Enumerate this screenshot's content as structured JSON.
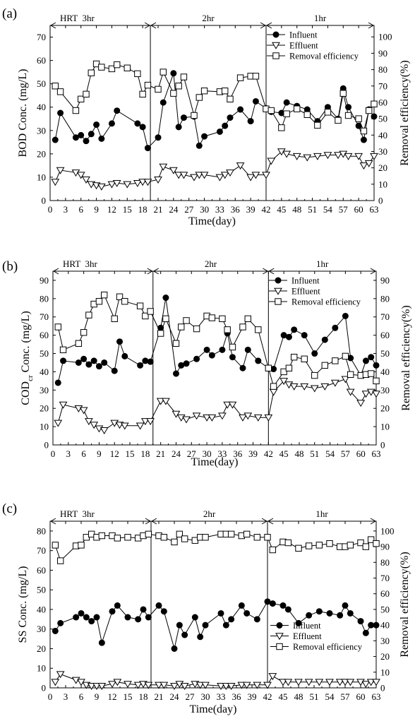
{
  "chart_data": [
    {
      "type": "line",
      "panel_label": "(a)",
      "ylabel": "BOD Conc. (mg/L)",
      "y2label": "Removal efficiency(%)",
      "xlabel": "Time(day)",
      "xlim": [
        0,
        63
      ],
      "ylim": [
        0,
        75
      ],
      "y2lim": [
        0,
        107
      ],
      "xticks": [
        "0",
        "3",
        "6",
        "9",
        "12",
        "15",
        "18",
        "21",
        "24",
        "27",
        "30",
        "33",
        "36",
        "39",
        "42",
        "45",
        "48",
        "51",
        "54",
        "57",
        "60",
        "63"
      ],
      "yticks": [
        "0",
        "10",
        "20",
        "30",
        "40",
        "50",
        "60",
        "70"
      ],
      "y2ticks": [
        "0",
        "10",
        "20",
        "30",
        "40",
        "50",
        "60",
        "70",
        "80",
        "90",
        "100"
      ],
      "phase_labels": [
        "HRT  3hr",
        "2hr",
        "1hr"
      ],
      "legend": [
        "Influent",
        "Effluent",
        "Removal efficiency"
      ],
      "legend_position": "top-right",
      "series": [
        {
          "name": "Influent",
          "axis": "left",
          "marker": "filled-circle",
          "x": [
            1,
            2,
            5,
            6,
            7,
            8,
            9,
            10,
            12,
            13,
            17,
            18,
            19,
            21,
            22,
            24,
            25,
            26,
            28,
            29,
            30,
            33,
            34,
            35,
            37,
            39,
            40,
            42,
            43,
            45,
            46,
            48,
            50,
            52,
            54,
            56,
            57,
            58,
            60,
            61,
            62,
            63
          ],
          "y": [
            26,
            37.5,
            27,
            28,
            25.5,
            28.5,
            32.5,
            26.5,
            33,
            38.5,
            33,
            31.5,
            22.5,
            27,
            42,
            54.5,
            31.5,
            35.5,
            36,
            23.5,
            27.5,
            29.5,
            32,
            35.5,
            39,
            34,
            42.5,
            39.5,
            38,
            37.5,
            42,
            40.5,
            39,
            34,
            40,
            35,
            48,
            40,
            32,
            26,
            39,
            36
          ]
        },
        {
          "name": "Effluent",
          "axis": "left",
          "marker": "open-down-triangle",
          "x": [
            1,
            2,
            5,
            6,
            7,
            8,
            9,
            10,
            12,
            13,
            15,
            17,
            18,
            19,
            21,
            22,
            24,
            25,
            26,
            28,
            29,
            30,
            33,
            34,
            35,
            37,
            39,
            40,
            42,
            43,
            45,
            46,
            48,
            50,
            52,
            54,
            56,
            57,
            58,
            60,
            61,
            62,
            63
          ],
          "y": [
            8,
            13,
            12,
            11,
            9,
            7,
            6.5,
            6,
            7,
            7.5,
            7,
            7.5,
            8,
            8,
            9,
            14.5,
            13,
            11,
            11,
            10,
            11,
            11,
            10,
            11,
            12,
            15,
            10,
            11,
            11,
            17,
            21,
            20,
            19,
            18.5,
            19,
            19.5,
            19.5,
            20,
            19,
            19,
            15,
            16,
            19
          ]
        },
        {
          "name": "Removal efficiency",
          "axis": "right",
          "marker": "open-square",
          "x": [
            1,
            2,
            5,
            6,
            7,
            8,
            9,
            10,
            12,
            13,
            15,
            17,
            18,
            19,
            21,
            22,
            24,
            25,
            26,
            28,
            29,
            30,
            33,
            34,
            35,
            37,
            39,
            40,
            42,
            43,
            45,
            46,
            48,
            50,
            52,
            54,
            56,
            57,
            58,
            60,
            61,
            62,
            63
          ],
          "y": [
            70,
            66.5,
            55,
            62,
            65,
            78,
            83.5,
            81.5,
            80.5,
            83,
            81,
            77.5,
            65,
            70.5,
            68,
            78.5,
            65.5,
            70,
            75.5,
            52,
            63,
            67,
            66.5,
            67,
            62,
            75,
            76,
            76,
            56,
            55,
            44.5,
            53,
            56,
            52.5,
            46,
            54,
            49,
            65.5,
            52,
            50,
            42.5,
            55,
            59
          ]
        }
      ]
    },
    {
      "type": "line",
      "panel_label": "(b)",
      "ylabel": "COD",
      "ylabel_sub": "cr",
      "ylabel_rest": " Conc. (mg/L)",
      "y2label": "Removal efficiency(%)",
      "xlabel": "Time(day)",
      "xlim": [
        0,
        63
      ],
      "ylim": [
        0,
        95
      ],
      "y2lim": [
        0,
        95
      ],
      "xticks": [
        "0",
        "3",
        "6",
        "9",
        "12",
        "15",
        "18",
        "21",
        "24",
        "27",
        "30",
        "33",
        "36",
        "39",
        "42",
        "45",
        "48",
        "51",
        "54",
        "57",
        "60",
        "63"
      ],
      "yticks": [
        "0",
        "10",
        "20",
        "30",
        "40",
        "50",
        "60",
        "70",
        "80",
        "90"
      ],
      "y2ticks": [
        "0",
        "10",
        "20",
        "30",
        "40",
        "50",
        "60",
        "70",
        "80",
        "90"
      ],
      "phase_labels": [
        "HRT  3hr",
        "2hr",
        "1hr"
      ],
      "legend": [
        "Influent",
        "Effluent",
        "Removal efficiency"
      ],
      "legend_position": "top-right",
      "series": [
        {
          "name": "Influent",
          "axis": "left",
          "marker": "filled-circle",
          "x": [
            1,
            2,
            5,
            6,
            7,
            8,
            9,
            10,
            12,
            13,
            14,
            17,
            18,
            19,
            21,
            22,
            24,
            25,
            26,
            28,
            30,
            31,
            33,
            34,
            35,
            37,
            38,
            40,
            42,
            43,
            45,
            46,
            47,
            49,
            51,
            53,
            55,
            57,
            58,
            60,
            61,
            62,
            63
          ],
          "y": [
            34,
            46,
            45,
            47,
            44,
            46,
            43,
            45,
            40.5,
            56.5,
            48.5,
            43.5,
            46,
            45.5,
            64,
            80.5,
            39,
            43.5,
            44.5,
            47,
            52,
            49,
            52,
            61,
            48,
            42,
            52,
            46,
            42,
            41.5,
            60,
            59,
            63,
            60,
            50,
            57.5,
            64,
            70.5,
            47.5,
            38,
            46,
            48,
            43.5
          ]
        },
        {
          "name": "Effluent",
          "axis": "left",
          "marker": "open-down-triangle",
          "x": [
            1,
            2,
            5,
            6,
            7,
            8,
            9,
            10,
            12,
            13,
            14,
            17,
            18,
            19,
            21,
            22,
            24,
            25,
            26,
            28,
            30,
            31,
            33,
            34,
            35,
            37,
            38,
            40,
            42,
            43,
            45,
            46,
            47,
            49,
            51,
            53,
            55,
            57,
            58,
            60,
            61,
            62,
            63
          ],
          "y": [
            12,
            22,
            20,
            19,
            13,
            11,
            9,
            8,
            12,
            11,
            10.5,
            10.5,
            13,
            13,
            24,
            24,
            17,
            15,
            14,
            16,
            15,
            15,
            16,
            22,
            22,
            15,
            16,
            15,
            15,
            29,
            35,
            33,
            32,
            32,
            31,
            32,
            34,
            36,
            29,
            23,
            28,
            29,
            28
          ]
        },
        {
          "name": "Removal efficiency",
          "axis": "right",
          "marker": "open-square",
          "x": [
            1,
            2,
            5,
            6,
            7,
            8,
            9,
            10,
            12,
            13,
            14,
            17,
            18,
            19,
            21,
            22,
            24,
            25,
            26,
            28,
            30,
            31,
            33,
            34,
            35,
            37,
            38,
            40,
            42,
            43,
            45,
            46,
            47,
            49,
            51,
            53,
            55,
            57,
            58,
            60,
            61,
            62,
            63
          ],
          "y": [
            64.5,
            52,
            55.5,
            61.5,
            71,
            77,
            78.5,
            82,
            69,
            81,
            78.5,
            76,
            70.5,
            73,
            61,
            69,
            55.5,
            64.5,
            68,
            63.5,
            70.5,
            69.5,
            69,
            63,
            53.5,
            64.5,
            69,
            63,
            42,
            32,
            40,
            42,
            48,
            47,
            38,
            43.5,
            46,
            48.5,
            38.5,
            38,
            38.5,
            39,
            35
          ]
        }
      ]
    },
    {
      "type": "line",
      "panel_label": "(c)",
      "ylabel": "SS Conc. (mg/L)",
      "y2label": "Removal efficiency(%)",
      "xlabel": "Time(day)",
      "xlim": [
        0,
        63
      ],
      "ylim": [
        0,
        85
      ],
      "y2lim": [
        0,
        106.25
      ],
      "xticks": [
        "0",
        "3",
        "6",
        "9",
        "12",
        "15",
        "18",
        "21",
        "24",
        "27",
        "30",
        "33",
        "36",
        "39",
        "42",
        "45",
        "48",
        "51",
        "54",
        "57",
        "60",
        "63"
      ],
      "yticks": [
        "0",
        "10",
        "20",
        "30",
        "40",
        "50",
        "60",
        "70",
        "80"
      ],
      "y2ticks": [
        "0",
        "10",
        "20",
        "30",
        "40",
        "50",
        "60",
        "70",
        "80",
        "90",
        "100"
      ],
      "phase_labels": [
        "HRT  3hr",
        "2hr",
        "1hr"
      ],
      "legend": [
        "Influent",
        "Effluent",
        "Removal efficiency"
      ],
      "legend_position": "center-right",
      "series": [
        {
          "name": "Influent",
          "axis": "left",
          "marker": "filled-circle",
          "x": [
            1,
            2,
            5,
            6,
            7,
            8,
            9,
            10,
            12,
            13,
            15,
            17,
            18,
            19,
            21,
            22,
            24,
            25,
            26,
            28,
            29,
            30,
            33,
            34,
            35,
            37,
            38,
            40,
            42,
            43,
            45,
            46,
            48,
            50,
            52,
            54,
            56,
            57,
            58,
            60,
            61,
            62,
            63
          ],
          "y": [
            29,
            33,
            36,
            38,
            36,
            34,
            36,
            23,
            39,
            42,
            36,
            35,
            40,
            36,
            42,
            39,
            20,
            32,
            27,
            36,
            26,
            32,
            38,
            32,
            35,
            42,
            38,
            35,
            44,
            43,
            42,
            40,
            33,
            37,
            39,
            38,
            37,
            42,
            38,
            34,
            28,
            32,
            32
          ]
        },
        {
          "name": "Effluent",
          "axis": "left",
          "marker": "open-down-triangle",
          "x": [
            1,
            2,
            5,
            6,
            7,
            8,
            9,
            10,
            12,
            13,
            15,
            17,
            18,
            19,
            21,
            22,
            24,
            25,
            26,
            28,
            29,
            30,
            33,
            34,
            35,
            37,
            38,
            40,
            42,
            43,
            45,
            46,
            48,
            50,
            52,
            54,
            56,
            57,
            58,
            60,
            61,
            62,
            63
          ],
          "y": [
            3,
            7,
            4,
            3,
            1.5,
            1,
            1,
            1,
            2,
            3,
            2,
            1.5,
            2,
            1.5,
            1.5,
            1.5,
            1,
            2,
            1,
            2,
            1.5,
            1.5,
            1,
            1,
            1,
            1.5,
            1.5,
            1.5,
            1.5,
            6,
            3,
            3,
            3,
            3,
            3,
            3,
            3,
            3,
            3,
            3,
            2,
            3,
            3
          ]
        },
        {
          "name": "Removal efficiency",
          "axis": "right",
          "marker": "open-square",
          "x": [
            1,
            2,
            5,
            6,
            7,
            8,
            9,
            10,
            12,
            13,
            15,
            17,
            18,
            19,
            21,
            22,
            24,
            25,
            26,
            28,
            29,
            30,
            33,
            34,
            35,
            37,
            38,
            40,
            42,
            43,
            45,
            46,
            48,
            50,
            52,
            54,
            56,
            57,
            58,
            60,
            61,
            62,
            63
          ],
          "y": [
            91,
            81,
            90.5,
            91,
            96,
            98,
            96,
            97,
            97,
            95.5,
            96,
            95.5,
            97,
            98,
            97,
            96,
            93,
            98,
            95,
            94,
            96,
            96,
            98,
            98,
            98,
            97,
            98,
            96,
            96,
            88,
            93,
            92.5,
            89,
            90.5,
            91,
            92,
            90,
            90,
            91,
            92.5,
            90,
            94.5,
            92
          ]
        }
      ]
    }
  ]
}
